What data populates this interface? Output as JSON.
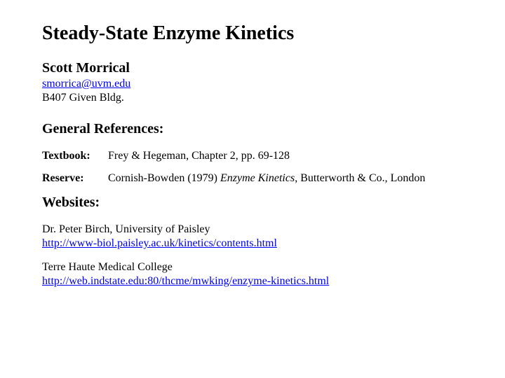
{
  "title": "Steady-State Enzyme Kinetics",
  "author": "Scott Morrical",
  "email": "smorrica@uvm.edu",
  "address": "B407 Given Bldg.",
  "references_heading": "General References:",
  "textbook": {
    "label": "Textbook:",
    "text": "Frey & Hegeman, Chapter 2, pp. 69-128"
  },
  "reserve": {
    "label": "Reserve:",
    "prefix": "Cornish-Bowden (1979) ",
    "italic": "Enzyme Kinetics",
    "suffix": ", Butterworth & Co., London"
  },
  "websites_heading": "Websites:",
  "site1": {
    "name": "Dr. Peter Birch, University of Paisley",
    "url": "http://www-biol.paisley.ac.uk/kinetics/contents.html"
  },
  "site2": {
    "name": "Terre Haute Medical College",
    "url": "http://web.indstate.edu:80/thcme/mwking/enzyme-kinetics.html"
  },
  "colors": {
    "link": "#0000ee",
    "text": "#000000",
    "background": "#ffffff"
  },
  "typography": {
    "title_pt": 28,
    "section_pt": 20,
    "body_pt": 16,
    "family": "Times New Roman"
  }
}
